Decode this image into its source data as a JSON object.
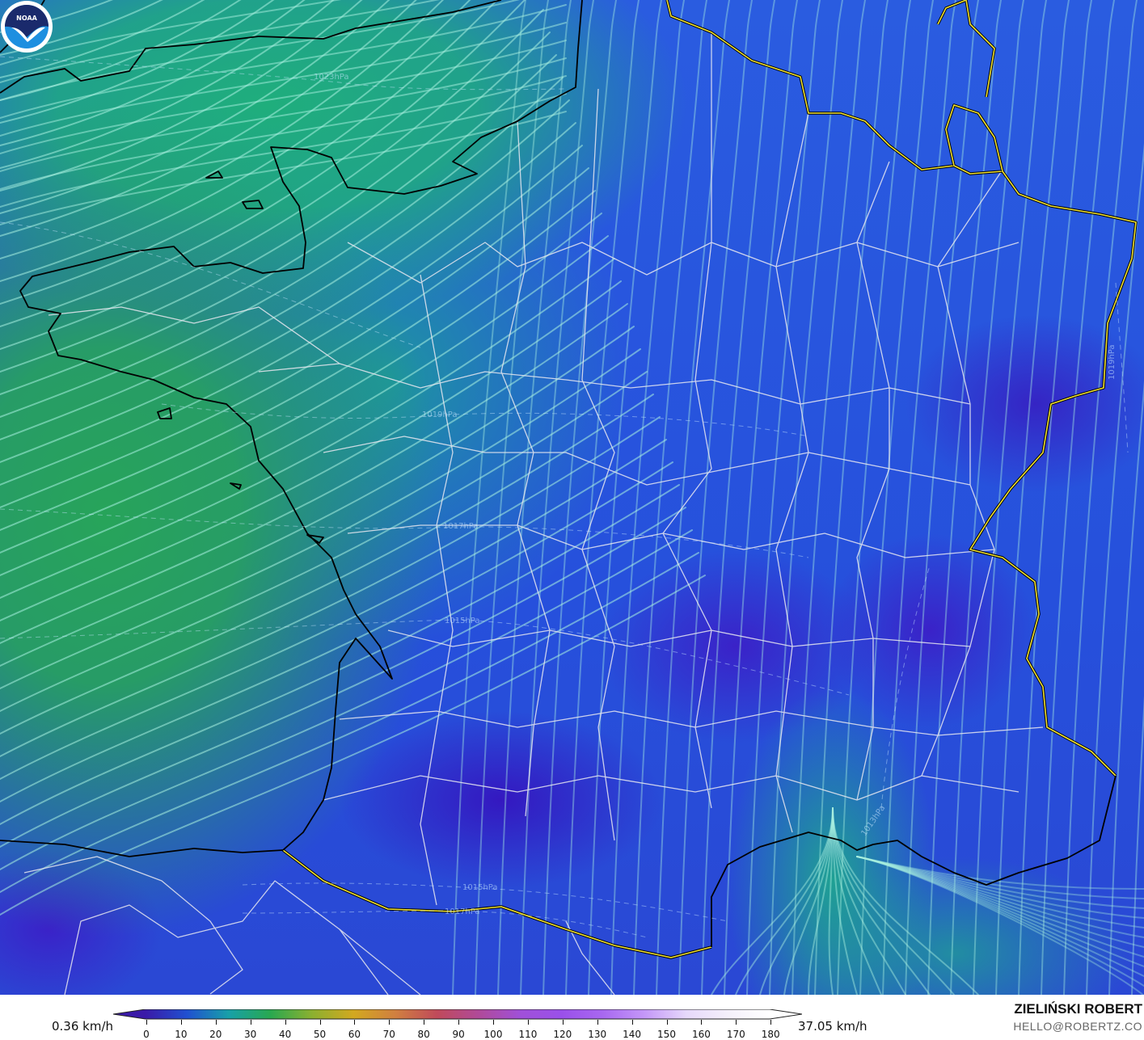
{
  "map": {
    "pressure_labels": [
      {
        "text": "1023hPa"
      },
      {
        "text": "1019hPa"
      },
      {
        "text": "1017hPa"
      },
      {
        "text": "1015hPa"
      },
      {
        "text": "1015hPa"
      },
      {
        "text": "1017hPa"
      },
      {
        "text": "1013hPa"
      },
      {
        "text": "1019hPa"
      }
    ],
    "colors": {
      "sea_green": "#27a45a",
      "land_blue": "#2a5ce0",
      "calm_purple": "#3418c0",
      "coastline": "#000000",
      "national_border": "#f0e030",
      "admin_border": "#e8e8f0",
      "streamline": "#a8f0e0"
    },
    "logo": {
      "text": "NOAA"
    }
  },
  "legend": {
    "min_label": "0.36 km/h",
    "max_label": "37.05 km/h",
    "ticks": [
      "0",
      "10",
      "20",
      "30",
      "40",
      "50",
      "60",
      "70",
      "80",
      "90",
      "100",
      "110",
      "120",
      "130",
      "140",
      "150",
      "160",
      "170",
      "180"
    ],
    "colorscale": [
      "#3a1aa8",
      "#2050d0",
      "#18a0a8",
      "#28a850",
      "#8cb030",
      "#d2a820",
      "#d08040",
      "#c04a5a",
      "#b04a98",
      "#a050d8",
      "#9a50ea",
      "#a868f0",
      "#c498f8",
      "#e6d8fa",
      "#f4f0fa",
      "#ffffff"
    ]
  },
  "credit": {
    "author": "ZIELIŃSKI ROBERT",
    "email": "HELLO@ROBERTZ.CO"
  }
}
